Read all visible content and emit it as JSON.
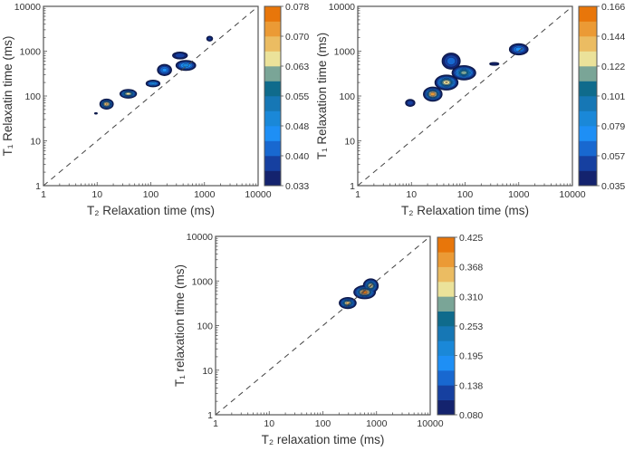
{
  "colors": {
    "bands_bottom_to_top": [
      "#14236e",
      "#1640a0",
      "#1868d0",
      "#1e8ff5",
      "#1a88d8",
      "#1677b5",
      "#0f6b8c",
      "#7aa597",
      "#ebe29a",
      "#ebbc62",
      "#eb9a35",
      "#e8760a"
    ],
    "contour_line": "#0d1a4a",
    "diagonal": "#444444",
    "axis": "#555555"
  },
  "chart_data": [
    {
      "type": "contour",
      "xlabel": "T₂ Relaxation time (ms)",
      "ylabel": "T₁ Relaxatin time (ms)",
      "x_scale": "log",
      "y_scale": "log",
      "xlim": [
        1,
        10000
      ],
      "ylim": [
        1,
        10000
      ],
      "x_ticks": [
        "1",
        "10",
        "100",
        "1000",
        "10000"
      ],
      "y_ticks": [
        "1",
        "10",
        "100",
        "1000",
        "10000"
      ],
      "diagonal": "T1 = T2, dashed",
      "grid": false,
      "colorbar": {
        "min": 0.033,
        "max": 0.078,
        "bands": 12,
        "ticks": [
          "0.033",
          "0.040",
          "0.048",
          "0.055",
          "0.063",
          "0.070",
          "0.078"
        ],
        "placement": "right"
      },
      "peaks": [
        {
          "t2": 9.5,
          "t1": 41,
          "amplitude": 0.0345,
          "spread_t2_decades": 0.08,
          "spread_t1_decades": 0.05
        },
        {
          "t2": 15,
          "t1": 66,
          "amplitude": 0.071,
          "spread_t2_decades": 0.1,
          "spread_t1_decades": 0.09
        },
        {
          "t2": 38,
          "t1": 112,
          "amplitude": 0.066,
          "spread_t2_decades": 0.13,
          "spread_t1_decades": 0.08
        },
        {
          "t2": 110,
          "t1": 190,
          "amplitude": 0.05,
          "spread_t2_decades": 0.14,
          "spread_t1_decades": 0.08
        },
        {
          "t2": 180,
          "t1": 380,
          "amplitude": 0.046,
          "spread_t2_decades": 0.16,
          "spread_t1_decades": 0.15
        },
        {
          "t2": 450,
          "t1": 480,
          "amplitude": 0.05,
          "spread_t2_decades": 0.2,
          "spread_t1_decades": 0.12
        },
        {
          "t2": 350,
          "t1": 800,
          "amplitude": 0.04,
          "spread_t2_decades": 0.22,
          "spread_t1_decades": 0.12
        },
        {
          "t2": 1250,
          "t1": 1900,
          "amplitude": 0.038,
          "spread_t2_decades": 0.1,
          "spread_t1_decades": 0.1
        }
      ]
    },
    {
      "type": "contour",
      "xlabel": "T₂ Relaxation time (ms)",
      "ylabel": "T₁ Relaxation time (ms)",
      "x_scale": "log",
      "y_scale": "log",
      "xlim": [
        1,
        10000
      ],
      "ylim": [
        1,
        10000
      ],
      "x_ticks": [
        "1",
        "10",
        "100",
        "1000",
        "10000"
      ],
      "y_ticks": [
        "1",
        "10",
        "100",
        "1000",
        "10000"
      ],
      "diagonal": "T1 = T2, dashed",
      "grid": false,
      "colorbar": {
        "min": 0.035,
        "max": 0.166,
        "bands": 12,
        "ticks": [
          "0.035",
          "0.057",
          "0.079",
          "0.101",
          "0.122",
          "0.144",
          "0.166"
        ],
        "placement": "right"
      },
      "peaks": [
        {
          "t2": 9.5,
          "t1": 70,
          "amplitude": 0.055,
          "spread_t2_decades": 0.09,
          "spread_t1_decades": 0.08
        },
        {
          "t2": 25,
          "t1": 110,
          "amplitude": 0.155,
          "spread_t2_decades": 0.1,
          "spread_t1_decades": 0.09
        },
        {
          "t2": 45,
          "t1": 200,
          "amplitude": 0.135,
          "spread_t2_decades": 0.13,
          "spread_t1_decades": 0.1
        },
        {
          "t2": 55,
          "t1": 600,
          "amplitude": 0.065,
          "spread_t2_decades": 0.15,
          "spread_t1_decades": 0.16
        },
        {
          "t2": 95,
          "t1": 330,
          "amplitude": 0.12,
          "spread_t2_decades": 0.14,
          "spread_t1_decades": 0.1
        },
        {
          "t2": 350,
          "t1": 520,
          "amplitude": 0.042,
          "spread_t2_decades": 0.14,
          "spread_t1_decades": 0.05
        },
        {
          "t2": 1000,
          "t1": 1100,
          "amplitude": 0.075,
          "spread_t2_decades": 0.14,
          "spread_t1_decades": 0.1
        }
      ]
    },
    {
      "type": "contour",
      "xlabel": "T₂ relaxation time (ms)",
      "ylabel": "T₁ relaxation time (ms)",
      "x_scale": "log",
      "y_scale": "log",
      "xlim": [
        1,
        10000
      ],
      "ylim": [
        1,
        10000
      ],
      "x_ticks": [
        "1",
        "10",
        "100",
        "1000",
        "10000"
      ],
      "y_ticks": [
        "1",
        "10",
        "100",
        "1000",
        "10000"
      ],
      "diagonal": "T1 = T2, dashed",
      "grid": false,
      "colorbar": {
        "min": 0.08,
        "max": 0.425,
        "bands": 12,
        "ticks": [
          "0.080",
          "0.138",
          "0.195",
          "0.253",
          "0.310",
          "0.368",
          "0.425"
        ],
        "placement": "right"
      },
      "peaks": [
        {
          "t2": 290,
          "t1": 320,
          "amplitude": 0.36,
          "spread_t2_decades": 0.09,
          "spread_t1_decades": 0.07
        },
        {
          "t2": 600,
          "t1": 560,
          "amplitude": 0.42,
          "spread_t2_decades": 0.11,
          "spread_t1_decades": 0.08
        },
        {
          "t2": 780,
          "t1": 780,
          "amplitude": 0.35,
          "spread_t2_decades": 0.08,
          "spread_t1_decades": 0.09
        }
      ]
    }
  ]
}
